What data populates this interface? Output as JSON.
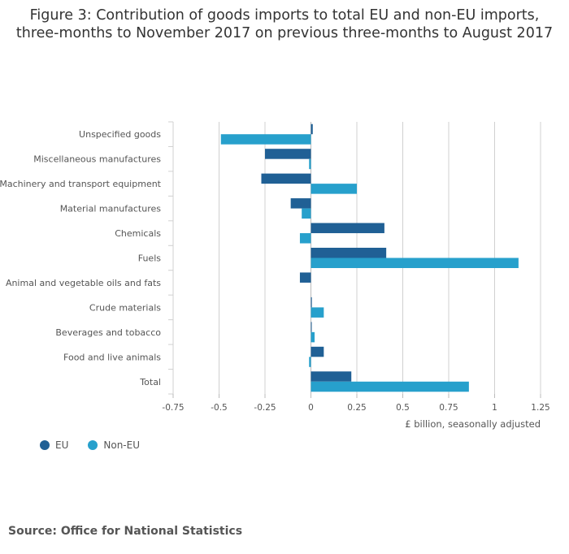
{
  "title_line1": "Figure 3: Contribution of goods imports to total EU and non-EU imports,",
  "title_line2": "three-months to November 2017 on previous three-months to August 2017",
  "source": "Source: Office for National Statistics",
  "colors": {
    "eu": "#206095",
    "non_eu": "#27a0cc",
    "grid": "#d0d0d0"
  },
  "chart_data": {
    "type": "bar",
    "orientation": "horizontal",
    "categories": [
      "Unspecified goods",
      "Miscellaneous manufactures",
      "Machinery and transport equipment",
      "Material manufactures",
      "Chemicals",
      "Fuels",
      "Animal and vegetable oils and fats",
      "Crude materials",
      "Beverages and tobacco",
      "Food and live animals",
      "Total"
    ],
    "series": [
      {
        "name": "EU",
        "values": [
          0.01,
          -0.25,
          -0.27,
          -0.11,
          0.4,
          0.41,
          -0.06,
          0.005,
          0.003,
          0.07,
          0.22
        ]
      },
      {
        "name": "Non-EU",
        "values": [
          -0.49,
          -0.01,
          0.25,
          -0.05,
          -0.06,
          1.13,
          0.0,
          0.07,
          0.02,
          -0.01,
          0.86
        ]
      }
    ],
    "xlabel": "£ billion, seasonally adjusted",
    "xlim": [
      -0.75,
      1.25
    ],
    "xticks": [
      "-0.75",
      "-0.5",
      "-0.25",
      "0",
      "0.25",
      "0.5",
      "0.75",
      "1",
      "1.25"
    ],
    "grid": true,
    "legend_position": "bottom-left"
  }
}
